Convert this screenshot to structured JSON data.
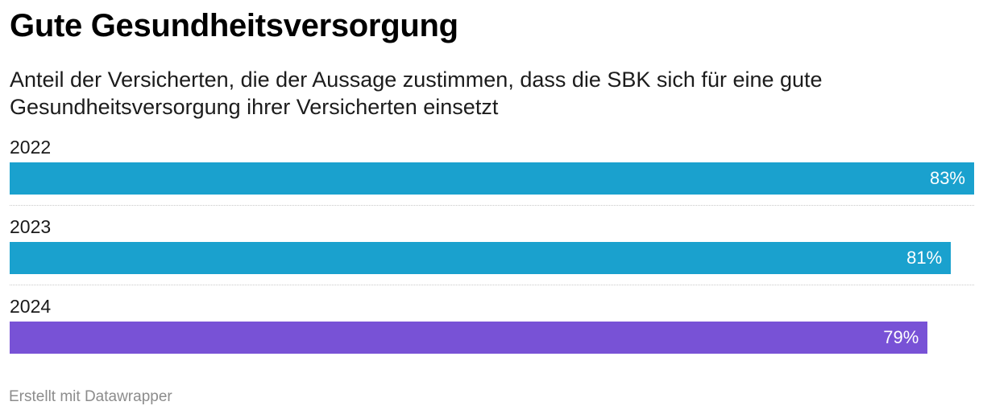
{
  "header": {
    "title": "Gute Gesundheitsversorgung",
    "subtitle": "Anteil der Versicherten, die der Aussage zustimmen, dass die SBK sich für eine gute Gesundheitsversorgung ihrer Versicherten einsetzt"
  },
  "chart_data": {
    "type": "bar",
    "orientation": "horizontal",
    "title": "Gute Gesundheitsversorgung",
    "subtitle": "Anteil der Versicherten, die der Aussage zustimmen, dass die SBK sich für eine gute Gesundheitsversorgung ihrer Versicherten einsetzt",
    "categories": [
      "2022",
      "2023",
      "2024"
    ],
    "values": [
      83,
      81,
      79
    ],
    "value_labels": [
      "83%",
      "81%",
      "79%"
    ],
    "unit": "%",
    "xlim": [
      0,
      83
    ],
    "colors": [
      "#1aa1ce",
      "#1aa1ce",
      "#7852d6"
    ],
    "grid": false
  },
  "footer": {
    "credit": "Erstellt mit Datawrapper"
  }
}
